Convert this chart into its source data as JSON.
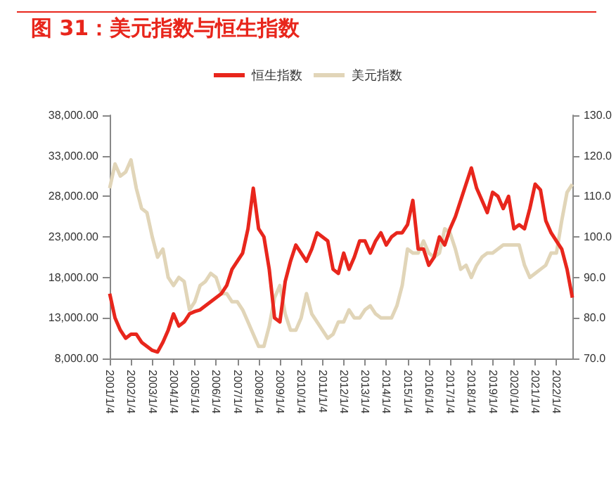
{
  "chart_data": {
    "type": "line",
    "title": "图 31：美元指数与恒生指数",
    "legend": "top",
    "marker": "none",
    "grid": false,
    "categories": [
      "2001/1/4",
      null,
      null,
      null,
      "2002/1/4",
      null,
      null,
      null,
      "2003/1/4",
      null,
      null,
      null,
      "2004/1/4",
      null,
      null,
      null,
      "2005/1/4",
      null,
      null,
      null,
      "2006/1/4",
      null,
      null,
      null,
      "2007/1/4",
      null,
      null,
      null,
      "2008/1/4",
      null,
      null,
      null,
      "2009/1/4",
      null,
      null,
      null,
      "2010/1/4",
      null,
      null,
      null,
      "2011/1/4",
      null,
      null,
      null,
      "2012/1/4",
      null,
      null,
      null,
      "2013/1/4",
      null,
      null,
      null,
      "2014/1/4",
      null,
      null,
      null,
      "2015/1/4",
      null,
      null,
      null,
      "2016/1/4",
      null,
      null,
      null,
      "2017/1/4",
      null,
      null,
      null,
      "2018/1/4",
      null,
      null,
      null,
      "2019/1/4",
      null,
      null,
      null,
      "2020/1/4",
      null,
      null,
      null,
      "2021/1/4",
      null,
      null,
      null,
      "2022/1/4",
      null,
      null,
      null
    ],
    "ylim": [
      8000,
      38000
    ],
    "yticks": [
      {
        "value": 8000,
        "label": "8,000.00"
      },
      {
        "value": 13000,
        "label": "13,000.00"
      },
      {
        "value": 18000,
        "label": "18,000.00"
      },
      {
        "value": 23000,
        "label": "23,000.00"
      },
      {
        "value": 28000,
        "label": "28,000.00"
      },
      {
        "value": 33000,
        "label": "33,000.00"
      },
      {
        "value": 38000,
        "label": "38,000.00"
      }
    ],
    "y2lim": [
      70,
      130
    ],
    "y2ticks": [
      {
        "value": 70,
        "label": "70.0"
      },
      {
        "value": 80,
        "label": "80.0"
      },
      {
        "value": 90,
        "label": "90.0"
      },
      {
        "value": 100,
        "label": "100.0"
      },
      {
        "value": 110,
        "label": "110.0"
      },
      {
        "value": 120,
        "label": "120.0"
      },
      {
        "value": 130,
        "label": "130.0"
      }
    ],
    "series": [
      {
        "name": "恒生指数",
        "color": "#e8261c",
        "values": [
          16000,
          13000,
          11500,
          10500,
          11000,
          11000,
          10000,
          9500,
          9000,
          8800,
          10000,
          11500,
          13500,
          12000,
          12500,
          13500,
          13800,
          14000,
          14500,
          15000,
          15500,
          16000,
          17000,
          19000,
          20000,
          21000,
          24000,
          29000,
          24000,
          23000,
          19000,
          13000,
          12500,
          17500,
          20000,
          22000,
          21000,
          20000,
          21500,
          23500,
          23000,
          22500,
          19000,
          18500,
          21000,
          19000,
          20500,
          22500,
          22500,
          21000,
          22500,
          23500,
          22000,
          23000,
          23500,
          23500,
          24500,
          27500,
          21500,
          21500,
          19500,
          20500,
          23000,
          22000,
          24000,
          25500,
          27500,
          29500,
          31500,
          29000,
          27500,
          26000,
          28500,
          28000,
          26500,
          28000,
          24000,
          24500,
          24000,
          26500,
          29500,
          28800,
          25000,
          23500,
          22500,
          21500,
          19000,
          15500
        ]
      },
      {
        "name": "美元指数",
        "color": "#e1d5b8",
        "axis": "y2",
        "values": [
          112,
          118,
          115,
          116,
          119,
          112,
          107,
          106,
          100,
          95,
          97,
          90,
          88,
          90,
          89,
          82,
          84,
          88,
          89,
          91,
          90,
          86,
          86,
          84,
          84,
          82,
          79,
          76,
          73,
          73,
          78,
          85,
          88,
          81,
          77,
          77,
          80,
          86,
          81,
          79,
          77,
          75,
          76,
          79,
          79,
          82,
          80,
          80,
          82,
          83,
          81,
          80,
          80,
          80,
          83,
          88,
          97,
          96,
          96,
          99,
          96,
          95,
          96,
          102,
          101,
          97,
          92,
          93,
          90,
          93,
          95,
          96,
          96,
          97,
          98,
          98,
          98,
          98,
          93,
          90,
          91,
          92,
          93,
          96,
          96,
          104,
          111,
          113
        ]
      }
    ]
  }
}
